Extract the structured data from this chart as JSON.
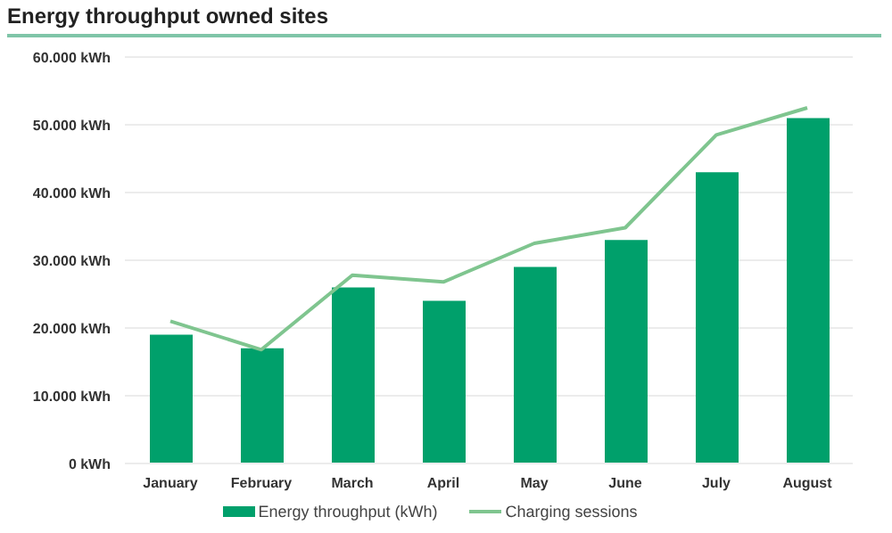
{
  "chart_data": {
    "type": "bar",
    "title": "Energy throughput owned sites",
    "categories": [
      "January",
      "February",
      "March",
      "April",
      "May",
      "June",
      "July",
      "August"
    ],
    "series": [
      {
        "name": "Energy throughput (kWh)",
        "color": "#00a06b",
        "values": [
          19000,
          17000,
          26000,
          24000,
          29000,
          33000,
          43000,
          51000
        ]
      },
      {
        "name": "Charging sessions",
        "type": "line",
        "color": "#7fc58f",
        "values": [
          21000,
          16800,
          27800,
          26800,
          32500,
          34800,
          48500,
          52500
        ]
      }
    ],
    "ylim": [
      0,
      60000
    ],
    "yticks": [
      {
        "value": 0,
        "label": "0 kWh"
      },
      {
        "value": 10000,
        "label": "10.000 kWh"
      },
      {
        "value": 20000,
        "label": "20.000 kWh"
      },
      {
        "value": 30000,
        "label": "30.000 kWh"
      },
      {
        "value": 40000,
        "label": "40.000 kWh"
      },
      {
        "value": 50000,
        "label": "50.000 kWh"
      },
      {
        "value": 60000,
        "label": "60.000 kWh"
      }
    ],
    "grid": "y",
    "legend": "bottom",
    "marker": "none",
    "line_style": "solid"
  }
}
